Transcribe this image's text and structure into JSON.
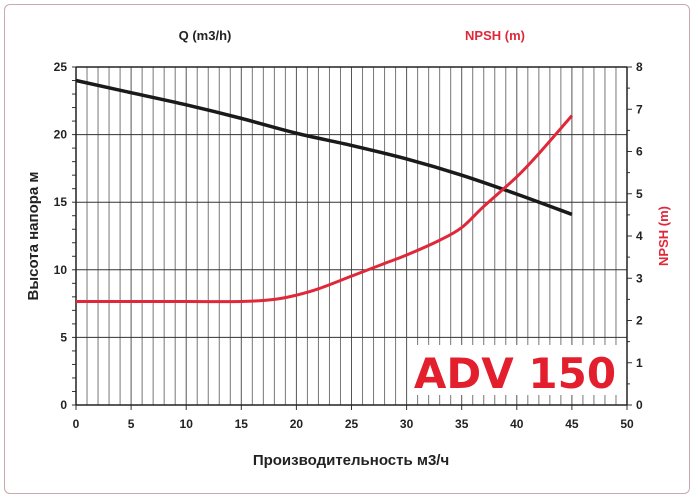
{
  "chart_data": {
    "type": "line",
    "top_label_left": "Q (m3/h)",
    "top_label_right": "NPSH (m)",
    "xlabel": "Производительность м3/ч",
    "ylabel": "Высота напора м",
    "y2label": "NPSH (m)",
    "annotation": "ADV 150",
    "xlim": [
      0,
      50
    ],
    "ylim": [
      0,
      25
    ],
    "y2lim": [
      0,
      8
    ],
    "xticks": [
      "0",
      "5",
      "10",
      "15",
      "20",
      "25",
      "30",
      "35",
      "40",
      "45",
      "50"
    ],
    "yticks": [
      "0",
      "5",
      "10",
      "15",
      "20",
      "25"
    ],
    "y2ticks": [
      "0",
      "1",
      "2",
      "3",
      "4",
      "5",
      "6",
      "7",
      "8"
    ],
    "grid": true,
    "series": [
      {
        "axis": "left",
        "color": "#1a1a1a",
        "x": [
          0,
          5,
          10,
          15,
          20,
          25,
          30,
          35,
          40,
          45
        ],
        "y": [
          24,
          23.1,
          22.2,
          21.2,
          20.1,
          19.2,
          18.2,
          17.0,
          15.6,
          14.1
        ]
      },
      {
        "axis": "right",
        "color": "#e0283a",
        "x": [
          0,
          5,
          10,
          15,
          18,
          20,
          22,
          25,
          28,
          30,
          33,
          35,
          37,
          40,
          42,
          45
        ],
        "y": [
          2.45,
          2.45,
          2.45,
          2.45,
          2.5,
          2.6,
          2.75,
          3.05,
          3.35,
          3.55,
          3.9,
          4.2,
          4.7,
          5.4,
          5.95,
          6.85
        ]
      }
    ]
  }
}
